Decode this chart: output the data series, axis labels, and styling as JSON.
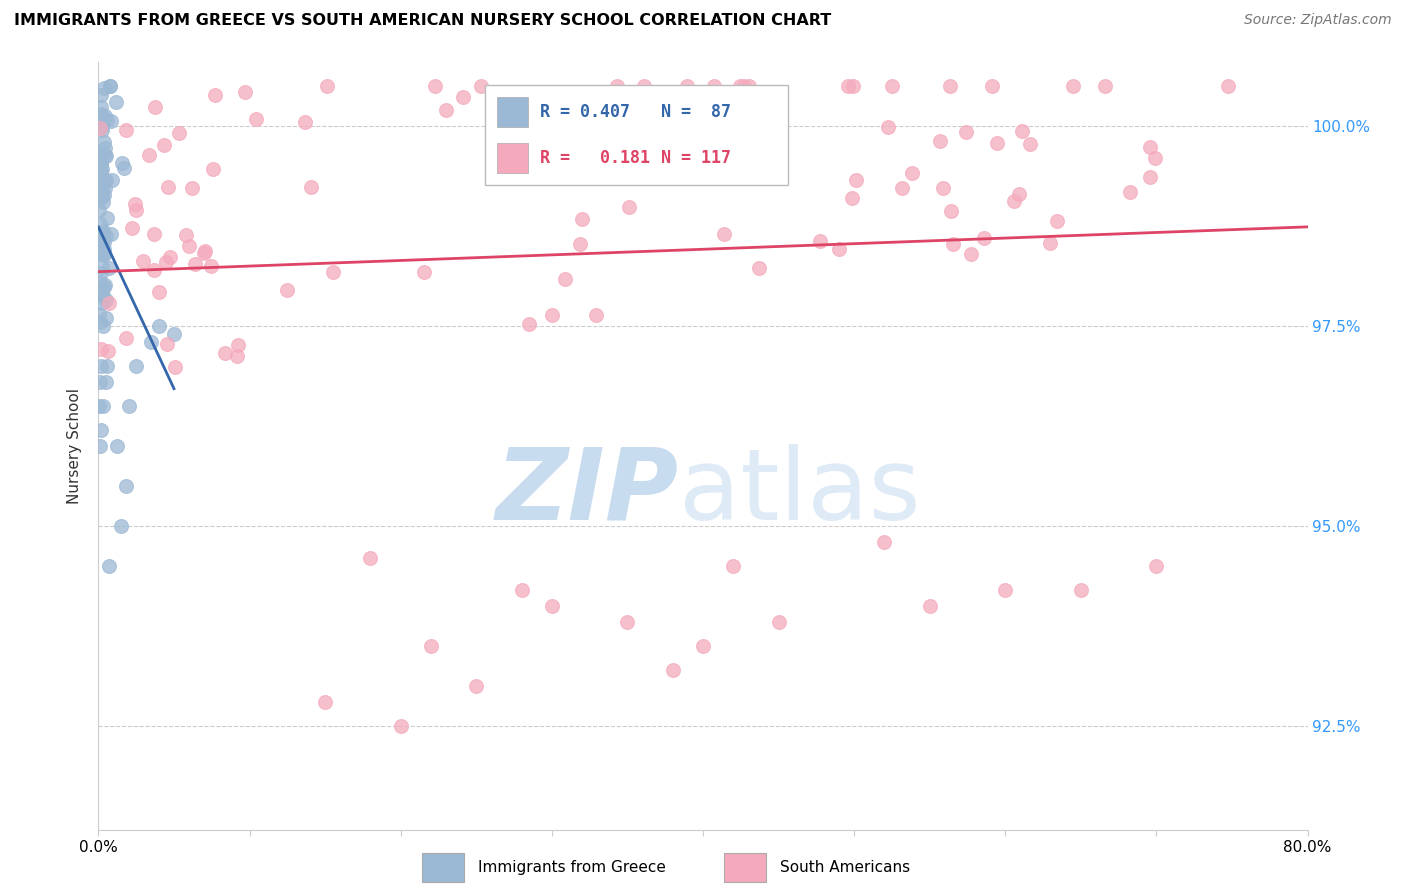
{
  "title": "IMMIGRANTS FROM GREECE VS SOUTH AMERICAN NURSERY SCHOOL CORRELATION CHART",
  "source": "Source: ZipAtlas.com",
  "ylabel": "Nursery School",
  "yticks": [
    92.5,
    95.0,
    97.5,
    100.0
  ],
  "ytick_labels": [
    "92.5%",
    "95.0%",
    "97.5%",
    "100.0%"
  ],
  "xmin": 0.0,
  "xmax": 80.0,
  "ymin": 91.2,
  "ymax": 100.8,
  "blue_color": "#9BB8D4",
  "pink_color": "#F4AABC",
  "blue_line_color": "#3366AA",
  "pink_line_color": "#DD4466",
  "blue_r": 0.407,
  "blue_n": 87,
  "pink_r": 0.181,
  "pink_n": 117,
  "watermark_zip_color": "#C8DCF0",
  "watermark_atlas_color": "#C8DCF0",
  "legend_label_blue": "Immigrants from Greece",
  "legend_label_pink": "South Americans"
}
